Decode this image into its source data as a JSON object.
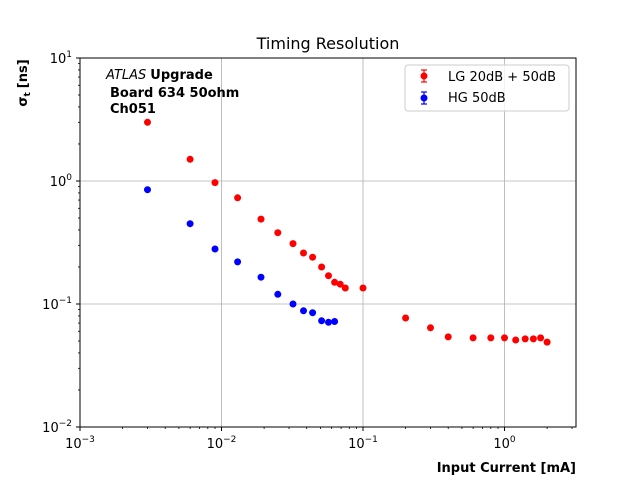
{
  "chart_data": {
    "type": "scatter",
    "title": "Timing Resolution",
    "xlabel": "Input Current [mA]",
    "ylabel_main": "σ",
    "ylabel_sub": "t",
    "ylabel_unit": "[ns]",
    "xscale": "log",
    "yscale": "log",
    "xlim": [
      0.001,
      3.2
    ],
    "ylim": [
      0.01,
      10
    ],
    "grid": true,
    "x_tick_values": [
      0.001,
      0.01,
      0.1,
      1
    ],
    "x_tick_base": [
      "10",
      "10",
      "10",
      "10"
    ],
    "x_tick_exp": [
      "−3",
      "−2",
      "−1",
      "0"
    ],
    "y_tick_values": [
      0.01,
      0.1,
      1,
      10
    ],
    "y_tick_base": [
      "10",
      "10",
      "10",
      "10"
    ],
    "y_tick_exp": [
      "−2",
      "−1",
      "0",
      "1"
    ],
    "annotation": {
      "italic": "ATLAS",
      "bold": "Upgrade",
      "line2": "Board 634 50ohm",
      "line3": "Ch051"
    },
    "legend_position": "top-right",
    "series": [
      {
        "name": "LG 20dB + 50dB",
        "color": "#ff0000",
        "x": [
          0.003,
          0.006,
          0.009,
          0.013,
          0.019,
          0.025,
          0.032,
          0.038,
          0.044,
          0.051,
          0.057,
          0.063,
          0.069,
          0.075,
          0.1,
          0.2,
          0.3,
          0.4,
          0.6,
          0.8,
          1.0,
          1.2,
          1.4,
          1.6,
          1.8,
          2.0
        ],
        "y": [
          3.0,
          1.5,
          0.97,
          0.73,
          0.49,
          0.38,
          0.31,
          0.26,
          0.24,
          0.2,
          0.17,
          0.15,
          0.145,
          0.135,
          0.135,
          0.077,
          0.064,
          0.054,
          0.053,
          0.053,
          0.053,
          0.051,
          0.052,
          0.052,
          0.053,
          0.049
        ]
      },
      {
        "name": "HG 50dB",
        "color": "#0000ff",
        "x": [
          0.003,
          0.006,
          0.009,
          0.013,
          0.019,
          0.025,
          0.032,
          0.038,
          0.044,
          0.051,
          0.057,
          0.063
        ],
        "y": [
          0.85,
          0.45,
          0.28,
          0.22,
          0.165,
          0.12,
          0.1,
          0.088,
          0.085,
          0.073,
          0.071,
          0.072
        ]
      }
    ]
  }
}
